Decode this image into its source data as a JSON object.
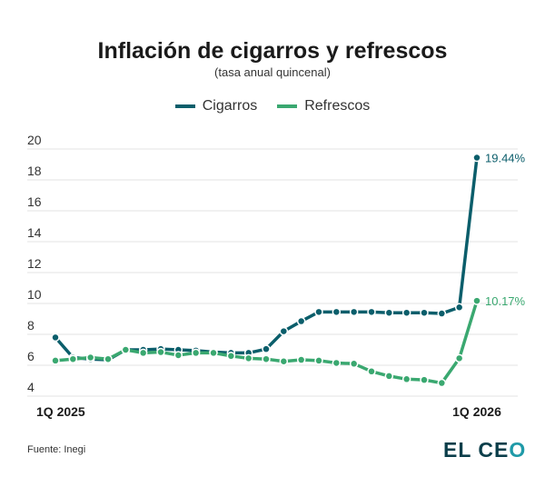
{
  "chart_data": {
    "type": "line",
    "title": "Inflación de cigarros y refrescos",
    "subtitle": "(tasa anual quincenal)",
    "x_labels": {
      "first": "1Q 2025",
      "last": "1Q 2026"
    },
    "ylim": [
      4,
      20
    ],
    "yticks": [
      4,
      6,
      8,
      10,
      12,
      14,
      16,
      18,
      20
    ],
    "grid": true,
    "legend_position": "top",
    "series": [
      {
        "name": "Cigarros",
        "color": "#0b5e6b",
        "end_label": "19.44%",
        "values": [
          7.8,
          6.5,
          6.4,
          6.35,
          7.0,
          7.0,
          7.05,
          7.0,
          6.95,
          6.85,
          6.8,
          6.8,
          7.05,
          8.2,
          8.85,
          9.45,
          9.45,
          9.45,
          9.45,
          9.4,
          9.4,
          9.4,
          9.35,
          9.75,
          19.44
        ]
      },
      {
        "name": "Refrescos",
        "color": "#3aa870",
        "end_label": "10.17%",
        "values": [
          6.3,
          6.4,
          6.5,
          6.4,
          7.0,
          6.8,
          6.85,
          6.65,
          6.8,
          6.8,
          6.6,
          6.45,
          6.4,
          6.25,
          6.35,
          6.3,
          6.15,
          6.1,
          5.6,
          5.3,
          5.1,
          5.05,
          4.85,
          6.45,
          10.17
        ]
      }
    ]
  },
  "footer": {
    "source": "Fuente: Inegi",
    "logo_main": "EL CE",
    "logo_accent": "O"
  }
}
